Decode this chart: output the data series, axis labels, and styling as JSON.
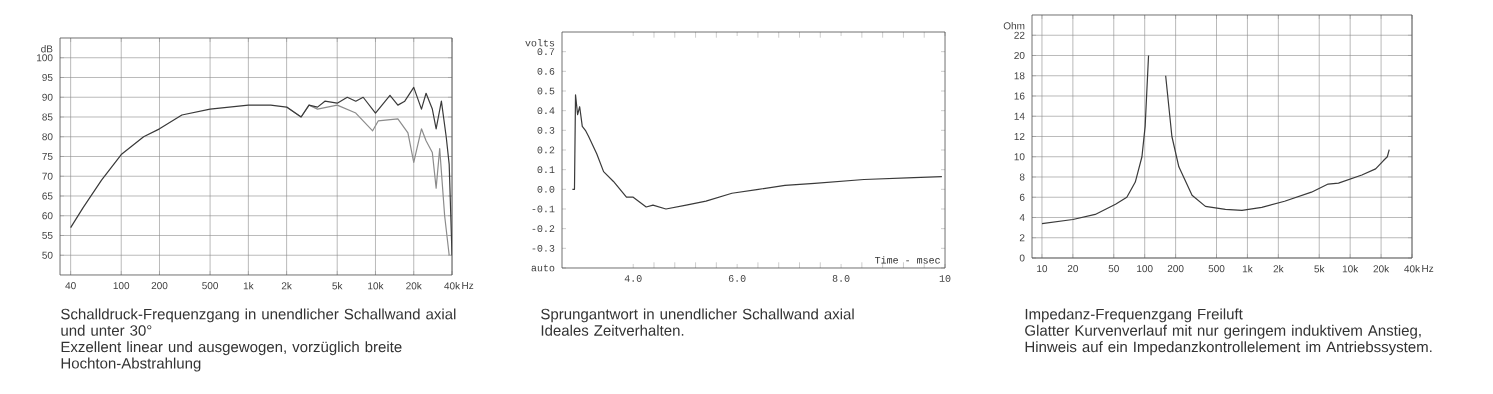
{
  "chart_data": [
    {
      "type": "line",
      "title": "Schalldruck-Frequenzgang in unendlicher Schallwand axial und unter 30°",
      "subtitle": "Exzellent linear und ausgewogen, vorzüglich breite Hochton-Abstrahlung",
      "ylabel": "dB",
      "log": "x",
      "grid": true,
      "xlim": [
        33,
        40000
      ],
      "ylim": [
        45,
        105
      ],
      "xticks": [
        40,
        100,
        200,
        500,
        {
          "value": 1000,
          "label": "1k"
        },
        {
          "value": 2000,
          "label": "2k"
        },
        {
          "value": 5000,
          "label": "5k"
        },
        {
          "value": 10000,
          "label": "10k"
        },
        {
          "value": 20000,
          "label": "20k"
        },
        {
          "value": 40000,
          "label": "40k"
        }
      ],
      "xlabel": "Hz",
      "yticks": [
        50,
        55,
        60,
        65,
        70,
        75,
        80,
        85,
        90,
        95,
        100
      ],
      "series": [
        {
          "color": "#8c8c8c",
          "x": [
            2000,
            2600,
            3000,
            3500,
            5000,
            7000,
            8000,
            9500,
            10500,
            15000,
            18000,
            20000,
            23000,
            25000,
            28000,
            30000,
            32000,
            35000,
            38000
          ],
          "values": [
            87.5,
            85,
            88,
            87,
            88,
            86,
            84,
            81.5,
            84,
            84.5,
            81,
            73.5,
            82,
            79,
            76,
            67,
            77,
            60,
            50
          ]
        },
        {
          "color": "#3a3a3a",
          "x": [
            40,
            50,
            70,
            100,
            150,
            200,
            300,
            500,
            1000,
            1500,
            2000,
            2600,
            3000,
            3500,
            4000,
            5000,
            6000,
            7000,
            8000,
            10000,
            13000,
            15000,
            17000,
            20000,
            23000,
            25000,
            28000,
            30000,
            33000,
            36000,
            38000,
            40000
          ],
          "values": [
            57,
            62,
            69,
            75.5,
            80,
            82,
            85.5,
            87,
            88,
            88,
            87.5,
            85,
            88,
            87.5,
            89,
            88.5,
            90,
            89,
            90,
            86,
            90.5,
            88,
            89,
            92.5,
            87,
            91,
            87,
            82,
            89,
            80,
            73,
            50
          ]
        }
      ]
    },
    {
      "type": "line",
      "title": "Sprungantwort in unendlicher Schallwand axial",
      "subtitle": "Ideales Zeitverhalten.",
      "xlabel": "Time - msec",
      "ylabel": "volts",
      "xlim": [
        2.63,
        10
      ],
      "ylim": [
        -0.4,
        0.8
      ],
      "xticks": [
        {
          "value": 4,
          "label": "4.0"
        },
        {
          "value": 6,
          "label": "6.0"
        },
        {
          "value": 8,
          "label": "8.0"
        },
        10
      ],
      "yticks": [
        {
          "value": -0.4,
          "label": "auto"
        },
        -0.3,
        -0.2,
        -0.1,
        {
          "value": 0,
          "label": "0.0"
        },
        0.1,
        0.2,
        0.3,
        0.4,
        0.5,
        0.6,
        0.7
      ],
      "series": [
        {
          "color": "#3a3a3a",
          "x": [
            2.83,
            2.87,
            2.89,
            2.93,
            2.97,
            3.02,
            3.08,
            3.14,
            3.3,
            3.43,
            3.62,
            3.87,
            4.0,
            4.25,
            4.38,
            4.63,
            5.02,
            5.4,
            5.9,
            6.41,
            6.92,
            7.49,
            8.44,
            9.4,
            9.94
          ],
          "values": [
            0.0,
            0.0,
            0.48,
            0.38,
            0.42,
            0.32,
            0.3,
            0.27,
            0.18,
            0.09,
            0.04,
            -0.04,
            -0.04,
            -0.09,
            -0.08,
            -0.1,
            -0.08,
            -0.06,
            -0.02,
            0.0,
            0.02,
            0.03,
            0.05,
            0.06,
            0.065
          ]
        }
      ]
    },
    {
      "type": "line",
      "title": "Impedanz-Frequenzgang Freiluft",
      "subtitle": "Glatter Kurvenverlauf mit nur geringem induktivem Anstieg, Hinweis auf ein Impedanzkontrollelement im Antriebssystem.",
      "ylabel": "Ohm",
      "log": "x",
      "grid": true,
      "xlim": [
        8,
        40000
      ],
      "ylim": [
        0,
        24
      ],
      "xticks": [
        10,
        20,
        50,
        100,
        200,
        500,
        {
          "value": 1000,
          "label": "1k"
        },
        {
          "value": 2000,
          "label": "2k"
        },
        {
          "value": 5000,
          "label": "5k"
        },
        {
          "value": 10000,
          "label": "10k"
        },
        {
          "value": 20000,
          "label": "20k"
        },
        {
          "value": 40000,
          "label": "40k"
        }
      ],
      "xlabel": "Hz",
      "yticks": [
        0,
        2,
        4,
        6,
        8,
        10,
        12,
        14,
        16,
        18,
        20,
        22
      ],
      "series": [
        {
          "color": "#3a3a3a",
          "x": [
            10,
            20,
            33,
            52,
            67,
            81,
            94,
            101,
            109,
            113,
            147,
            160,
            184,
            215,
            289,
            390,
            610,
            885,
            1380,
            2300,
            4200,
            6100,
            7700,
            13000,
            17700,
            21000,
            23000,
            24000
          ],
          "values": [
            3.4,
            3.8,
            4.3,
            5.3,
            6,
            7.5,
            10,
            13,
            20,
            null,
            null,
            18,
            12,
            9,
            6.2,
            5.1,
            4.8,
            4.7,
            5,
            5.6,
            6.5,
            7.3,
            7.4,
            8.2,
            8.8,
            9.6,
            10,
            10.7
          ]
        }
      ]
    }
  ]
}
